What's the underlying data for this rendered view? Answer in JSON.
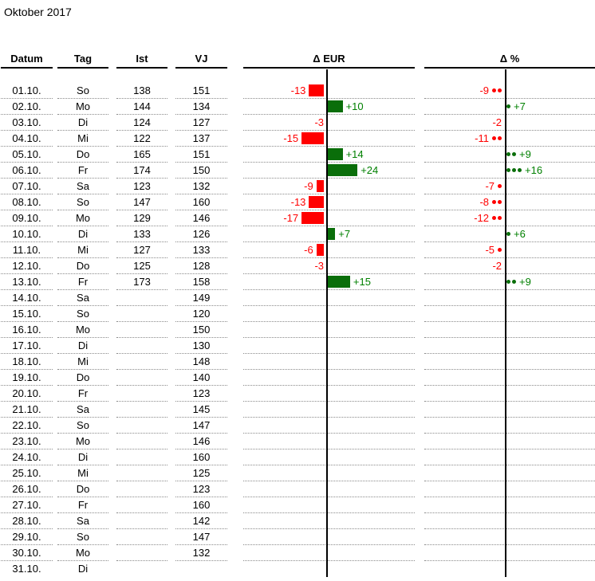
{
  "title": "Oktober 2017",
  "colors": {
    "negative": "#ff0000",
    "positive_bar": "#0a6e0a",
    "positive_label": "#008000",
    "axis": "#000000",
    "row_separator": "#8a8a8a"
  },
  "chart_data": {
    "type": "table",
    "subtype": "in-cell bar chart (Δ EUR) and dot chart (Δ %)",
    "title": "Oktober 2017",
    "columns": [
      "Datum",
      "Tag",
      "Ist",
      "VJ",
      "Δ EUR",
      "Δ %"
    ],
    "bar_scale": "1 block ≈ 5 EUR (floor(|Δ EUR|/5) blocks, ~9.3px each)",
    "dot_scale": "1 dot ≈ 5 % (round(|Δ %|/5) dots)",
    "legend_position": "none",
    "grid": "dotted horizontal row separators, vertical zero axis per chart column",
    "rows": [
      {
        "datum": "01.10.",
        "tag": "So",
        "ist": "138",
        "vj": "151",
        "d_eur": -13,
        "eur_label": "-13",
        "bar_blocks": 2,
        "d_pct": -9,
        "pct_label": "-9",
        "dots": 2
      },
      {
        "datum": "02.10.",
        "tag": "Mo",
        "ist": "144",
        "vj": "134",
        "d_eur": 10,
        "eur_label": "+10",
        "bar_blocks": 2,
        "d_pct": 7,
        "pct_label": "+7",
        "dots": 1
      },
      {
        "datum": "03.10.",
        "tag": "Di",
        "ist": "124",
        "vj": "127",
        "d_eur": -3,
        "eur_label": "-3",
        "bar_blocks": 0,
        "d_pct": -2,
        "pct_label": "-2",
        "dots": 0
      },
      {
        "datum": "04.10.",
        "tag": "Mi",
        "ist": "122",
        "vj": "137",
        "d_eur": -15,
        "eur_label": "-15",
        "bar_blocks": 3,
        "d_pct": -11,
        "pct_label": "-11",
        "dots": 2
      },
      {
        "datum": "05.10.",
        "tag": "Do",
        "ist": "165",
        "vj": "151",
        "d_eur": 14,
        "eur_label": "+14",
        "bar_blocks": 2,
        "d_pct": 9,
        "pct_label": "+9",
        "dots": 2
      },
      {
        "datum": "06.10.",
        "tag": "Fr",
        "ist": "174",
        "vj": "150",
        "d_eur": 24,
        "eur_label": "+24",
        "bar_blocks": 4,
        "d_pct": 16,
        "pct_label": "+16",
        "dots": 3
      },
      {
        "datum": "07.10.",
        "tag": "Sa",
        "ist": "123",
        "vj": "132",
        "d_eur": -9,
        "eur_label": "-9",
        "bar_blocks": 1,
        "d_pct": -7,
        "pct_label": "-7",
        "dots": 1
      },
      {
        "datum": "08.10.",
        "tag": "So",
        "ist": "147",
        "vj": "160",
        "d_eur": -13,
        "eur_label": "-13",
        "bar_blocks": 2,
        "d_pct": -8,
        "pct_label": "-8",
        "dots": 2
      },
      {
        "datum": "09.10.",
        "tag": "Mo",
        "ist": "129",
        "vj": "146",
        "d_eur": -17,
        "eur_label": "-17",
        "bar_blocks": 3,
        "d_pct": -12,
        "pct_label": "-12",
        "dots": 2
      },
      {
        "datum": "10.10.",
        "tag": "Di",
        "ist": "133",
        "vj": "126",
        "d_eur": 7,
        "eur_label": "+7",
        "bar_blocks": 1,
        "d_pct": 6,
        "pct_label": "+6",
        "dots": 1
      },
      {
        "datum": "11.10.",
        "tag": "Mi",
        "ist": "127",
        "vj": "133",
        "d_eur": -6,
        "eur_label": "-6",
        "bar_blocks": 1,
        "d_pct": -5,
        "pct_label": "-5",
        "dots": 1
      },
      {
        "datum": "12.10.",
        "tag": "Do",
        "ist": "125",
        "vj": "128",
        "d_eur": -3,
        "eur_label": "-3",
        "bar_blocks": 0,
        "d_pct": -2,
        "pct_label": "-2",
        "dots": 0
      },
      {
        "datum": "13.10.",
        "tag": "Fr",
        "ist": "173",
        "vj": "158",
        "d_eur": 15,
        "eur_label": "+15",
        "bar_blocks": 3,
        "d_pct": 9,
        "pct_label": "+9",
        "dots": 2
      },
      {
        "datum": "14.10.",
        "tag": "Sa",
        "ist": "",
        "vj": "149",
        "d_eur": null,
        "eur_label": "",
        "bar_blocks": 0,
        "d_pct": null,
        "pct_label": "",
        "dots": 0
      },
      {
        "datum": "15.10.",
        "tag": "So",
        "ist": "",
        "vj": "120",
        "d_eur": null,
        "eur_label": "",
        "bar_blocks": 0,
        "d_pct": null,
        "pct_label": "",
        "dots": 0
      },
      {
        "datum": "16.10.",
        "tag": "Mo",
        "ist": "",
        "vj": "150",
        "d_eur": null,
        "eur_label": "",
        "bar_blocks": 0,
        "d_pct": null,
        "pct_label": "",
        "dots": 0
      },
      {
        "datum": "17.10.",
        "tag": "Di",
        "ist": "",
        "vj": "130",
        "d_eur": null,
        "eur_label": "",
        "bar_blocks": 0,
        "d_pct": null,
        "pct_label": "",
        "dots": 0
      },
      {
        "datum": "18.10.",
        "tag": "Mi",
        "ist": "",
        "vj": "148",
        "d_eur": null,
        "eur_label": "",
        "bar_blocks": 0,
        "d_pct": null,
        "pct_label": "",
        "dots": 0
      },
      {
        "datum": "19.10.",
        "tag": "Do",
        "ist": "",
        "vj": "140",
        "d_eur": null,
        "eur_label": "",
        "bar_blocks": 0,
        "d_pct": null,
        "pct_label": "",
        "dots": 0
      },
      {
        "datum": "20.10.",
        "tag": "Fr",
        "ist": "",
        "vj": "123",
        "d_eur": null,
        "eur_label": "",
        "bar_blocks": 0,
        "d_pct": null,
        "pct_label": "",
        "dots": 0
      },
      {
        "datum": "21.10.",
        "tag": "Sa",
        "ist": "",
        "vj": "145",
        "d_eur": null,
        "eur_label": "",
        "bar_blocks": 0,
        "d_pct": null,
        "pct_label": "",
        "dots": 0
      },
      {
        "datum": "22.10.",
        "tag": "So",
        "ist": "",
        "vj": "147",
        "d_eur": null,
        "eur_label": "",
        "bar_blocks": 0,
        "d_pct": null,
        "pct_label": "",
        "dots": 0
      },
      {
        "datum": "23.10.",
        "tag": "Mo",
        "ist": "",
        "vj": "146",
        "d_eur": null,
        "eur_label": "",
        "bar_blocks": 0,
        "d_pct": null,
        "pct_label": "",
        "dots": 0
      },
      {
        "datum": "24.10.",
        "tag": "Di",
        "ist": "",
        "vj": "160",
        "d_eur": null,
        "eur_label": "",
        "bar_blocks": 0,
        "d_pct": null,
        "pct_label": "",
        "dots": 0
      },
      {
        "datum": "25.10.",
        "tag": "Mi",
        "ist": "",
        "vj": "125",
        "d_eur": null,
        "eur_label": "",
        "bar_blocks": 0,
        "d_pct": null,
        "pct_label": "",
        "dots": 0
      },
      {
        "datum": "26.10.",
        "tag": "Do",
        "ist": "",
        "vj": "123",
        "d_eur": null,
        "eur_label": "",
        "bar_blocks": 0,
        "d_pct": null,
        "pct_label": "",
        "dots": 0
      },
      {
        "datum": "27.10.",
        "tag": "Fr",
        "ist": "",
        "vj": "160",
        "d_eur": null,
        "eur_label": "",
        "bar_blocks": 0,
        "d_pct": null,
        "pct_label": "",
        "dots": 0
      },
      {
        "datum": "28.10.",
        "tag": "Sa",
        "ist": "",
        "vj": "142",
        "d_eur": null,
        "eur_label": "",
        "bar_blocks": 0,
        "d_pct": null,
        "pct_label": "",
        "dots": 0
      },
      {
        "datum": "29.10.",
        "tag": "So",
        "ist": "",
        "vj": "147",
        "d_eur": null,
        "eur_label": "",
        "bar_blocks": 0,
        "d_pct": null,
        "pct_label": "",
        "dots": 0
      },
      {
        "datum": "30.10.",
        "tag": "Mo",
        "ist": "",
        "vj": "132",
        "d_eur": null,
        "eur_label": "",
        "bar_blocks": 0,
        "d_pct": null,
        "pct_label": "",
        "dots": 0
      },
      {
        "datum": "31.10.",
        "tag": "Di",
        "ist": "",
        "vj": "",
        "d_eur": null,
        "eur_label": "",
        "bar_blocks": 0,
        "d_pct": null,
        "pct_label": "",
        "dots": 0
      }
    ]
  }
}
